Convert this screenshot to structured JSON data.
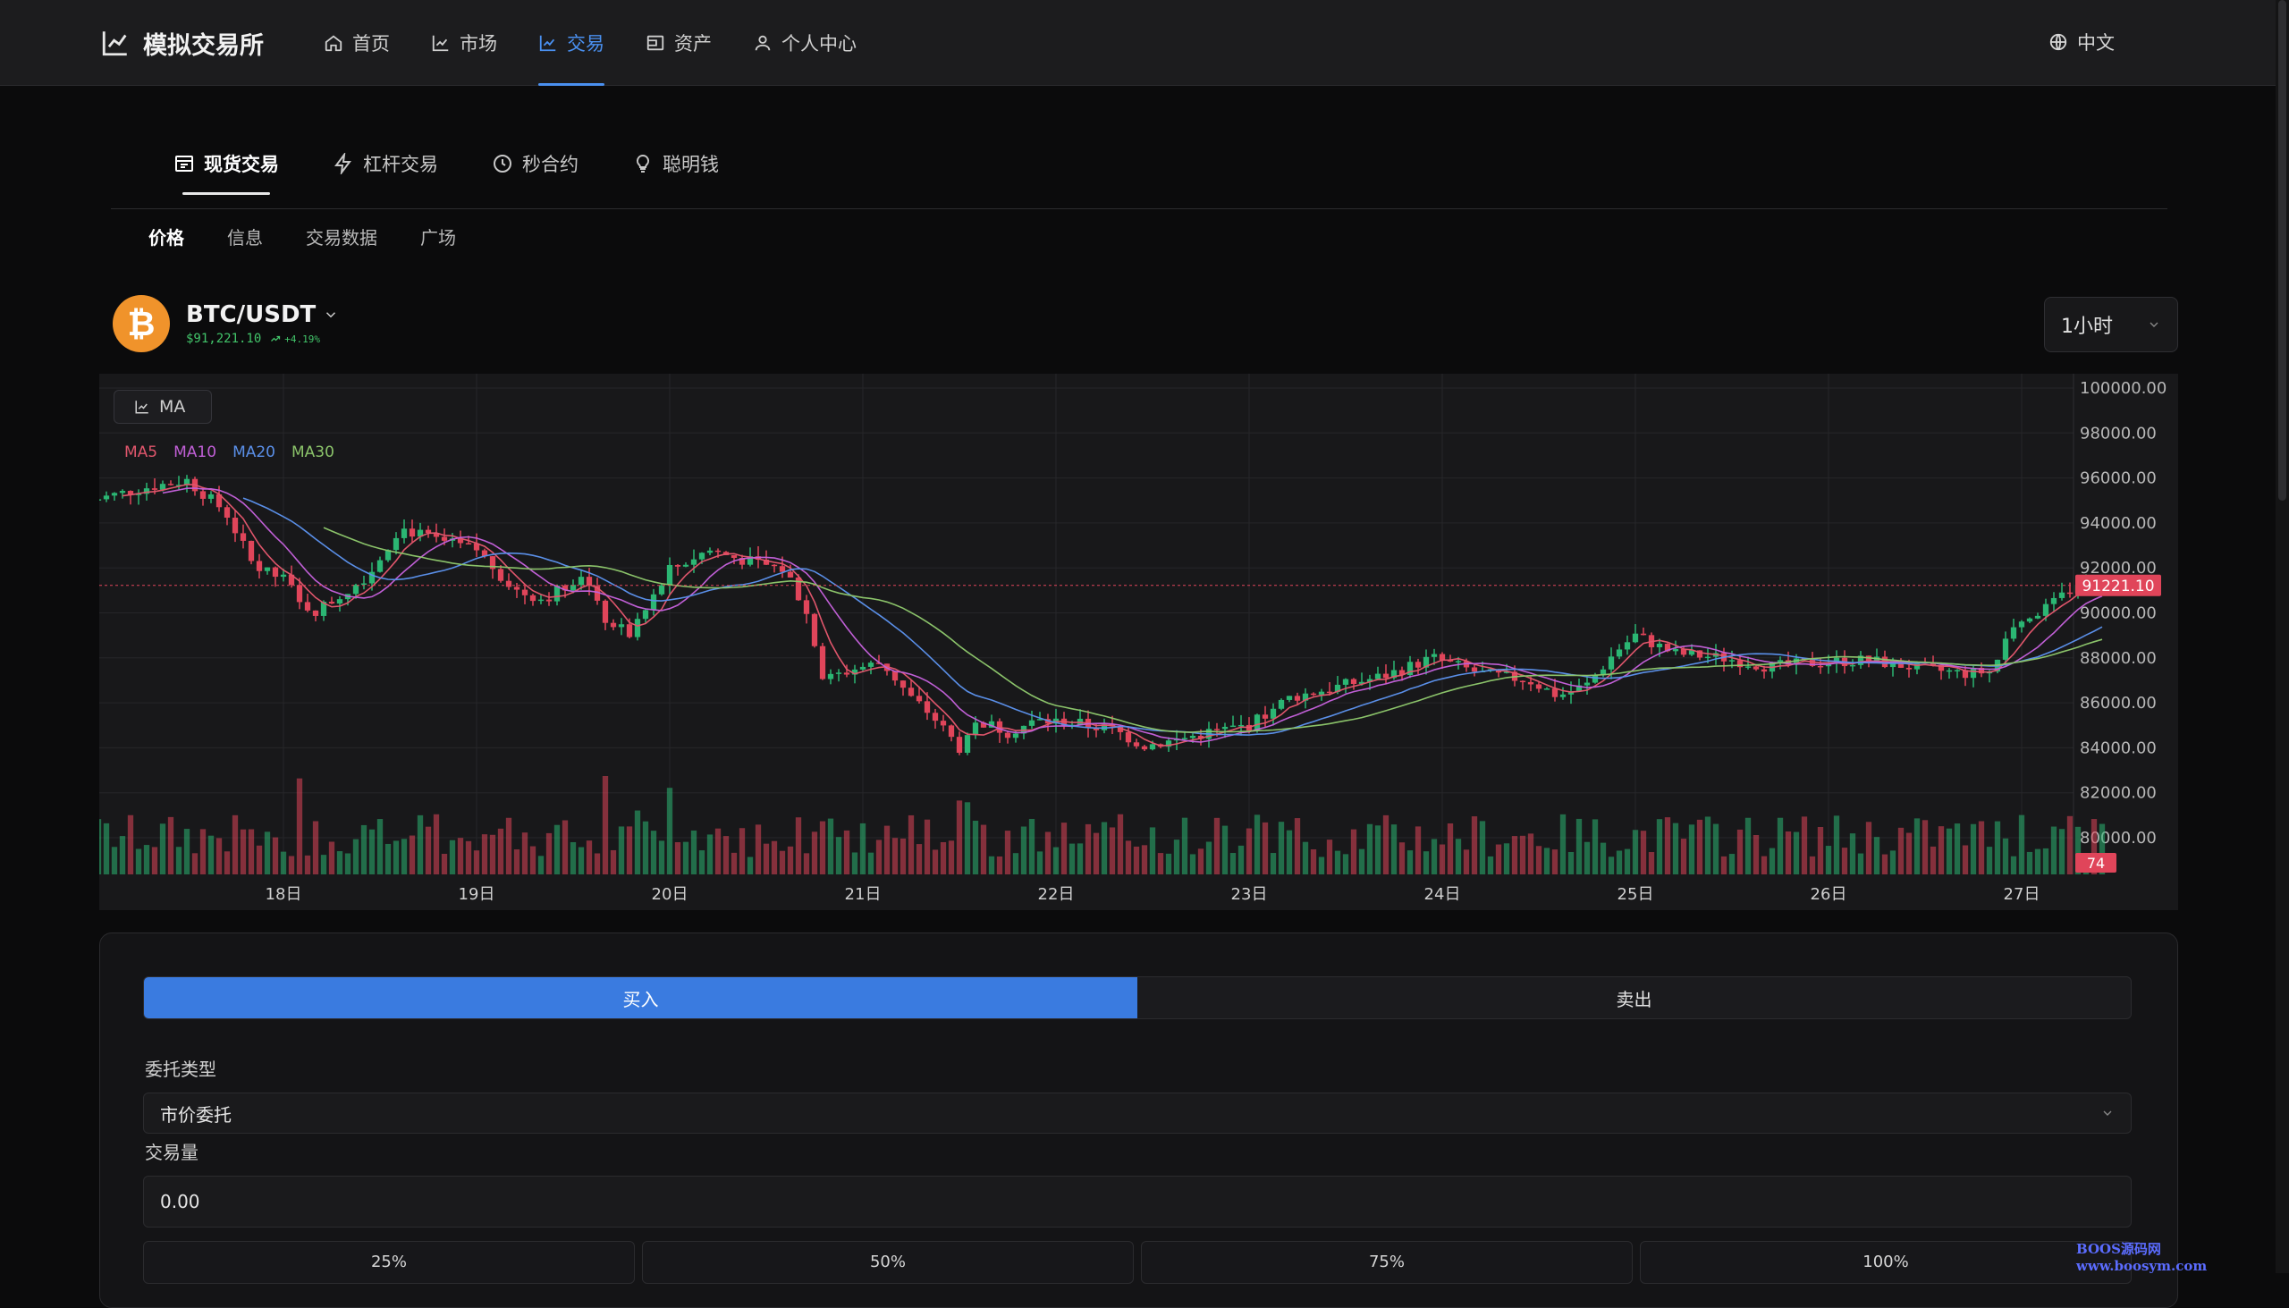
{
  "app": {
    "title": "模拟交易所",
    "language": "中文"
  },
  "nav": {
    "items": [
      {
        "label": "首页",
        "icon": "home-icon"
      },
      {
        "label": "市场",
        "icon": "chart-icon"
      },
      {
        "label": "交易",
        "icon": "trend-icon",
        "active": true
      },
      {
        "label": "资产",
        "icon": "wallet-icon"
      },
      {
        "label": "个人中心",
        "icon": "user-icon"
      }
    ]
  },
  "mode_tabs": [
    {
      "label": "现货交易",
      "icon": "store-icon",
      "active": true
    },
    {
      "label": "杠杆交易",
      "icon": "lightning-icon"
    },
    {
      "label": "秒合约",
      "icon": "clock-icon"
    },
    {
      "label": "聪明钱",
      "icon": "bulb-icon"
    }
  ],
  "sub_tabs": [
    {
      "label": "价格",
      "active": true
    },
    {
      "label": "信息"
    },
    {
      "label": "交易数据"
    },
    {
      "label": "广场"
    }
  ],
  "pair": {
    "coin_glyph": "₿",
    "name": "BTC/USDT",
    "price": "$91,221.10",
    "change": "+4.19%",
    "interval": "1小时"
  },
  "chart": {
    "ma_button": "MA",
    "legend": [
      {
        "label": "MA5",
        "color": "#e0566c"
      },
      {
        "label": "MA10",
        "color": "#c05fd6"
      },
      {
        "label": "MA20",
        "color": "#5a8fe8"
      },
      {
        "label": "MA30",
        "color": "#8bc36a"
      }
    ],
    "current_price_label": "91221.10",
    "current_volume_label": "74",
    "up_color": "#2bb673",
    "down_color": "#e0455a"
  },
  "chart_data": {
    "type": "candlestick",
    "x_tick_labels": [
      "18日",
      "19日",
      "20日",
      "21日",
      "22日",
      "23日",
      "24日",
      "25日",
      "26日",
      "27日"
    ],
    "y_tick_labels": [
      "100000.00",
      "98000.00",
      "96000.00",
      "94000.00",
      "92000.00",
      "90000.00",
      "88000.00",
      "86000.00",
      "84000.00",
      "82000.00",
      "80000.00"
    ],
    "ylim": [
      79000,
      100500
    ],
    "last_price": 91221.1,
    "last_volume": 74,
    "close_path": [
      [
        17.0,
        95000
      ],
      [
        17.3,
        95600
      ],
      [
        17.5,
        95900
      ],
      [
        17.7,
        94500
      ],
      [
        17.85,
        92000
      ],
      [
        18.0,
        91500
      ],
      [
        18.15,
        90000
      ],
      [
        18.3,
        90800
      ],
      [
        18.45,
        91800
      ],
      [
        18.6,
        93800
      ],
      [
        18.8,
        93200
      ],
      [
        19.0,
        92800
      ],
      [
        19.2,
        91000
      ],
      [
        19.35,
        90600
      ],
      [
        19.55,
        91800
      ],
      [
        19.65,
        89800
      ],
      [
        19.8,
        89000
      ],
      [
        20.0,
        91900
      ],
      [
        20.2,
        92800
      ],
      [
        20.4,
        92300
      ],
      [
        20.6,
        91900
      ],
      [
        20.7,
        90200
      ],
      [
        20.8,
        87000
      ],
      [
        20.95,
        87500
      ],
      [
        21.1,
        87800
      ],
      [
        21.25,
        86200
      ],
      [
        21.35,
        85500
      ],
      [
        21.5,
        84000
      ],
      [
        21.6,
        85200
      ],
      [
        21.75,
        84700
      ],
      [
        21.9,
        85200
      ],
      [
        22.1,
        85100
      ],
      [
        22.3,
        84800
      ],
      [
        22.45,
        84100
      ],
      [
        22.6,
        84300
      ],
      [
        22.8,
        84700
      ],
      [
        23.0,
        85000
      ],
      [
        23.2,
        86200
      ],
      [
        23.5,
        86800
      ],
      [
        23.7,
        87200
      ],
      [
        23.95,
        88000
      ],
      [
        24.2,
        87300
      ],
      [
        24.45,
        87000
      ],
      [
        24.6,
        86300
      ],
      [
        24.75,
        86800
      ],
      [
        24.9,
        88300
      ],
      [
        25.0,
        89000
      ],
      [
        25.2,
        88200
      ],
      [
        25.45,
        88000
      ],
      [
        25.7,
        87600
      ],
      [
        25.95,
        87800
      ],
      [
        26.2,
        87900
      ],
      [
        26.5,
        87500
      ],
      [
        26.7,
        87300
      ],
      [
        26.85,
        87400
      ],
      [
        26.95,
        89500
      ],
      [
        27.15,
        90300
      ],
      [
        27.3,
        91400
      ],
      [
        27.45,
        91221
      ]
    ],
    "ma_series": [
      "MA5",
      "MA10",
      "MA20",
      "MA30"
    ]
  },
  "order": {
    "buy_label": "买入",
    "sell_label": "卖出",
    "order_type_label": "委托类型",
    "order_type_value": "市价委托",
    "amount_label": "交易量",
    "amount_value": "0.00",
    "percent_buttons": [
      "25%",
      "50%",
      "75%",
      "100%"
    ]
  },
  "watermark": "BOOS源码网www.boosym.com"
}
